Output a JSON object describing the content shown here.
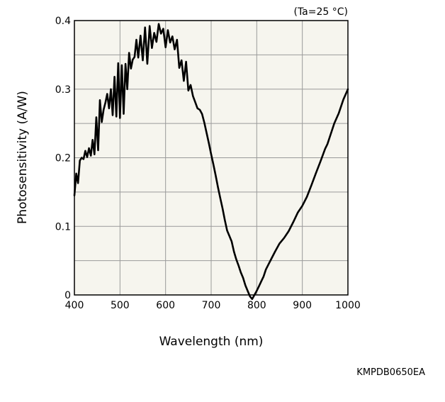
{
  "chart_data": {
    "type": "line",
    "title": "",
    "xlabel": "Wavelength (nm)",
    "ylabel": "Photosensitivity (A/W)",
    "xlim": [
      400,
      1000
    ],
    "ylim": [
      0,
      0.4
    ],
    "x_ticks": [
      400,
      500,
      600,
      700,
      800,
      900,
      1000
    ],
    "y_ticks": [
      0,
      0.1,
      0.2,
      0.3,
      0.4
    ],
    "x_tick_labels": [
      "400",
      "500",
      "600",
      "700",
      "800",
      "900",
      "1000"
    ],
    "y_tick_labels": [
      "0",
      "0.1",
      "0.2",
      "0.3",
      "0.4"
    ],
    "grid": true,
    "minor_grid_y": true,
    "background_color": "#f6f5ee",
    "line_color": "#000000",
    "annotation": "(Ta=25 °C)",
    "doc_code": "KMPDB0650EA",
    "series": [
      {
        "name": "",
        "x": [
          400,
          404,
          408,
          412,
          416,
          420,
          424,
          428,
          432,
          436,
          440,
          444,
          448,
          452,
          456,
          460,
          464,
          468,
          472,
          476,
          480,
          484,
          488,
          492,
          496,
          500,
          504,
          508,
          512,
          516,
          520,
          524,
          528,
          532,
          536,
          540,
          545,
          550,
          555,
          560,
          565,
          570,
          575,
          580,
          585,
          590,
          595,
          600,
          605,
          610,
          615,
          620,
          625,
          630,
          635,
          640,
          645,
          650,
          655,
          660,
          665,
          670,
          675,
          680,
          685,
          690,
          695,
          700,
          705,
          710,
          715,
          720,
          725,
          730,
          735,
          740,
          745,
          750,
          755,
          760,
          765,
          770,
          775,
          780,
          785,
          790,
          795,
          800,
          805,
          810,
          815,
          820,
          830,
          840,
          850,
          860,
          870,
          880,
          890,
          900,
          910,
          920,
          930,
          940,
          950,
          955,
          960,
          970,
          980,
          990,
          1000
        ],
        "y": [
          0.145,
          0.177,
          0.163,
          0.196,
          0.2,
          0.198,
          0.21,
          0.201,
          0.214,
          0.203,
          0.226,
          0.205,
          0.259,
          0.211,
          0.284,
          0.252,
          0.27,
          0.28,
          0.293,
          0.272,
          0.3,
          0.262,
          0.318,
          0.26,
          0.338,
          0.258,
          0.335,
          0.264,
          0.337,
          0.3,
          0.353,
          0.33,
          0.343,
          0.347,
          0.372,
          0.346,
          0.378,
          0.342,
          0.39,
          0.337,
          0.392,
          0.36,
          0.382,
          0.369,
          0.395,
          0.381,
          0.388,
          0.361,
          0.386,
          0.368,
          0.377,
          0.358,
          0.372,
          0.331,
          0.342,
          0.312,
          0.34,
          0.298,
          0.306,
          0.29,
          0.281,
          0.272,
          0.27,
          0.264,
          0.251,
          0.236,
          0.221,
          0.205,
          0.19,
          0.174,
          0.157,
          0.141,
          0.126,
          0.109,
          0.094,
          0.086,
          0.078,
          0.063,
          0.052,
          0.043,
          0.033,
          0.025,
          0.014,
          0.006,
          -0.002,
          -0.006,
          0.0,
          0.006,
          0.013,
          0.02,
          0.027,
          0.037,
          0.05,
          0.063,
          0.075,
          0.083,
          0.093,
          0.106,
          0.12,
          0.13,
          0.143,
          0.16,
          0.178,
          0.195,
          0.213,
          0.22,
          0.23,
          0.25,
          0.265,
          0.285,
          0.3
        ]
      }
    ]
  }
}
